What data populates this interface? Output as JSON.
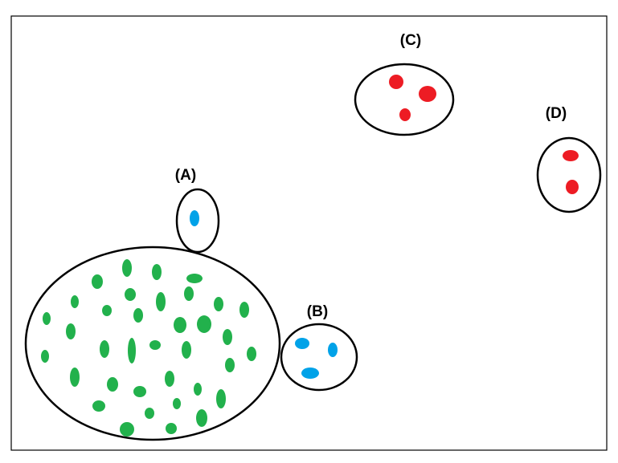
{
  "labels": {
    "a": "(A)",
    "b": "(B)",
    "c": "(C)",
    "d": "(D)"
  },
  "colors": {
    "green": "#22b14c",
    "blue": "#00a2e8",
    "red": "#ed1c24",
    "outline": "#000000"
  }
}
